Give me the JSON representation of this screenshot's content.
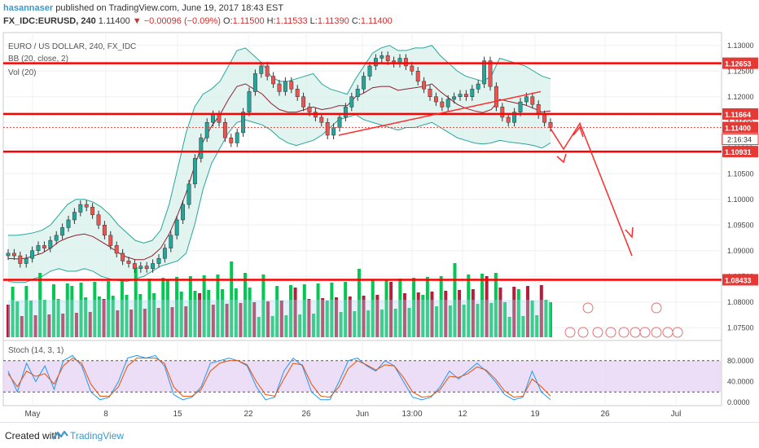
{
  "header": {
    "author": "hasannaser",
    "published": "published on TradingView.com, June 19, 2017 18:43 EST",
    "symbol": "FX_IDC:EURUSD, 240",
    "last": "1.11400",
    "change": "▼ −0.00096 (−0.09%)",
    "o_label": "O:",
    "o_val": "1.11500",
    "h_label": "H:",
    "h_val": "1.11533",
    "l_label": "L:",
    "l_val": "1.11390",
    "c_label": "C:",
    "c_val": "1.11400"
  },
  "legend": {
    "title": "EURO / US DOLLAR, 240, FX_IDC",
    "bb": "BB (20, close, 2)",
    "vol": "Vol (20)",
    "stoch": "Stoch (14, 3, 1)"
  },
  "footer": {
    "created": "Created with",
    "brand": "TradingView"
  },
  "colors": {
    "up": "#26a69a",
    "down": "#ef5350",
    "level": "#ff0000",
    "bb_fill": "#d6efe9",
    "bb_band": "#26a69a",
    "bb_basis": "#8b2232",
    "vol_up": "#00c853",
    "vol_down": "#b71c3a",
    "stoch_bg": "#e9d6f5",
    "k": "#2196f3",
    "d": "#e65100"
  },
  "chart_data": {
    "type": "candlestick",
    "x_labels": [
      "May",
      "8",
      "15",
      "22",
      "26",
      "Jun",
      "13:00",
      "12",
      "19",
      "26",
      "Jul"
    ],
    "y_ticks": [
      "1.13000",
      "1.12500",
      "1.12000",
      "1.11500",
      "1.11000",
      "1.10500",
      "1.10000",
      "1.09500",
      "1.09000",
      "1.08500",
      "1.08000",
      "1.07500"
    ],
    "price_range": [
      1.0725,
      1.1325
    ],
    "horizontal_levels": [
      "1.12653",
      "1.11664",
      "1.10931",
      "1.08433"
    ],
    "last_price": "1.11400",
    "countdown": "2:16:34",
    "close_series": [
      1.0895,
      1.089,
      1.0875,
      1.0885,
      1.09,
      1.091,
      1.0905,
      1.092,
      1.093,
      1.0945,
      1.096,
      1.0975,
      1.099,
      1.0985,
      1.097,
      1.095,
      1.093,
      1.091,
      1.0895,
      1.088,
      1.0875,
      1.0865,
      1.087,
      1.0865,
      1.0875,
      1.0885,
      1.0905,
      1.093,
      1.096,
      1.099,
      1.103,
      1.108,
      1.112,
      1.115,
      1.1165,
      1.115,
      1.112,
      1.111,
      1.113,
      1.117,
      1.121,
      1.1245,
      1.126,
      1.124,
      1.1225,
      1.121,
      1.123,
      1.1215,
      1.12,
      1.118,
      1.117,
      1.116,
      1.115,
      1.1125,
      1.114,
      1.116,
      1.118,
      1.12,
      1.1215,
      1.124,
      1.126,
      1.1275,
      1.128,
      1.127,
      1.1265,
      1.1275,
      1.126,
      1.125,
      1.123,
      1.1215,
      1.12,
      1.119,
      1.118,
      1.1195,
      1.12,
      1.1205,
      1.12,
      1.1215,
      1.1225,
      1.127,
      1.122,
      1.118,
      1.116,
      1.115,
      1.117,
      1.119,
      1.12,
      1.1185,
      1.1165,
      1.115,
      1.114
    ],
    "bb_upper": [
      1.093,
      1.093,
      1.0932,
      1.0935,
      1.094,
      1.095,
      1.097,
      1.099,
      1.1,
      1.1,
      1.0995,
      1.0985,
      1.097,
      1.095,
      1.0935,
      1.092,
      1.0915,
      1.092,
      1.094,
      1.099,
      1.106,
      1.113,
      1.118,
      1.1205,
      1.1215,
      1.123,
      1.126,
      1.129,
      1.1295,
      1.128,
      1.1265,
      1.124,
      1.123,
      1.123,
      1.1235,
      1.124,
      1.1245,
      1.1225,
      1.1215,
      1.121,
      1.1205,
      1.1235,
      1.126,
      1.1285,
      1.1295,
      1.13,
      1.129,
      1.129,
      1.1295,
      1.1295,
      1.13,
      1.128,
      1.1265,
      1.125,
      1.124,
      1.1235,
      1.123,
      1.124,
      1.1275,
      1.127,
      1.1265,
      1.126,
      1.125,
      1.124,
      1.1235
    ],
    "bb_lower": [
      1.084,
      1.0838,
      1.0838,
      1.0845,
      1.085,
      1.086,
      1.0865,
      1.086,
      1.086,
      1.0865,
      1.086,
      1.085,
      1.0845,
      1.0842,
      1.084,
      1.0845,
      1.085,
      1.086,
      1.087,
      1.0875,
      1.088,
      1.0895,
      1.095,
      1.102,
      1.107,
      1.11,
      1.113,
      1.115,
      1.1155,
      1.115,
      1.1145,
      1.1135,
      1.112,
      1.111,
      1.1105,
      1.111,
      1.1115,
      1.1125,
      1.114,
      1.1155,
      1.116,
      1.1165,
      1.1155,
      1.115,
      1.1145,
      1.114,
      1.1135,
      1.114,
      1.114,
      1.1145,
      1.115,
      1.114,
      1.113,
      1.112,
      1.1115,
      1.111,
      1.1108,
      1.111,
      1.1115,
      1.1112,
      1.111,
      1.1108,
      1.1105,
      1.11,
      1.111
    ],
    "trendline": [
      [
        "May 28",
        1.1125
      ],
      [
        "Jun 16",
        1.121
      ]
    ],
    "projection_arrows": [
      [
        1.111,
        1.109
      ],
      [
        1.1145,
        1.109
      ],
      [
        1.1145,
        1.0895
      ]
    ],
    "stoch_levels": [
      "80.0000",
      "40.0000",
      "0.0000"
    ],
    "stoch_k": [
      60,
      20,
      75,
      40,
      70,
      25,
      80,
      90,
      70,
      20,
      5,
      10,
      40,
      85,
      90,
      85,
      90,
      70,
      15,
      5,
      10,
      30,
      75,
      80,
      85,
      80,
      70,
      30,
      5,
      10,
      60,
      85,
      70,
      20,
      5,
      5,
      40,
      80,
      85,
      70,
      60,
      80,
      70,
      40,
      10,
      5,
      10,
      30,
      60,
      45,
      60,
      75,
      60,
      40,
      15,
      5,
      10,
      60,
      20,
      5
    ],
    "stoch_d": [
      55,
      30,
      60,
      50,
      55,
      35,
      70,
      85,
      75,
      35,
      12,
      12,
      30,
      70,
      85,
      85,
      85,
      75,
      30,
      12,
      12,
      25,
      60,
      75,
      80,
      80,
      72,
      40,
      15,
      12,
      45,
      75,
      72,
      35,
      12,
      10,
      30,
      65,
      80,
      72,
      62,
      72,
      70,
      48,
      20,
      10,
      12,
      25,
      50,
      48,
      55,
      68,
      62,
      45,
      22,
      10,
      12,
      45,
      30,
      12
    ]
  }
}
